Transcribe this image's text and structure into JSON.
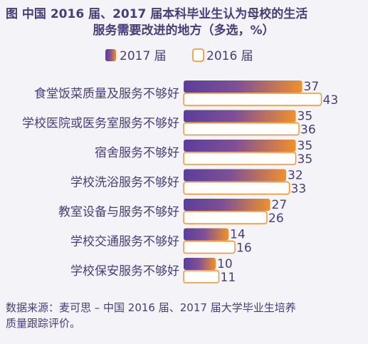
{
  "chart_data": {
    "type": "bar",
    "orientation": "horizontal",
    "title_line1": "图  中国 2016 届、2017 届本科毕业生认为母校的生活",
    "title_line2": "服务需要改进的地方（多选，%）",
    "categories": [
      "食堂饭菜质量及服务不够好",
      "学校医院或医务室服务不够好",
      "宿舍服务不够好",
      "学校洗浴服务不够好",
      "教室设备与服务不够好",
      "学校交通服务不够好",
      "学校保安服务不够好"
    ],
    "series": [
      {
        "name": "2017 届",
        "values": [
          37,
          35,
          35,
          32,
          27,
          14,
          10
        ],
        "color_start": "#5b3f9a",
        "color_end": "#f0902c"
      },
      {
        "name": "2016 届",
        "values": [
          43,
          36,
          35,
          33,
          26,
          16,
          11
        ],
        "color_fill": "#ffffff",
        "color_stroke": "#f0902c"
      }
    ],
    "source_line1": "数据来源：麦可思 – 中国 2016 届、2017 届大学毕业生培养",
    "source_line2": "质量跟踪评价。"
  }
}
